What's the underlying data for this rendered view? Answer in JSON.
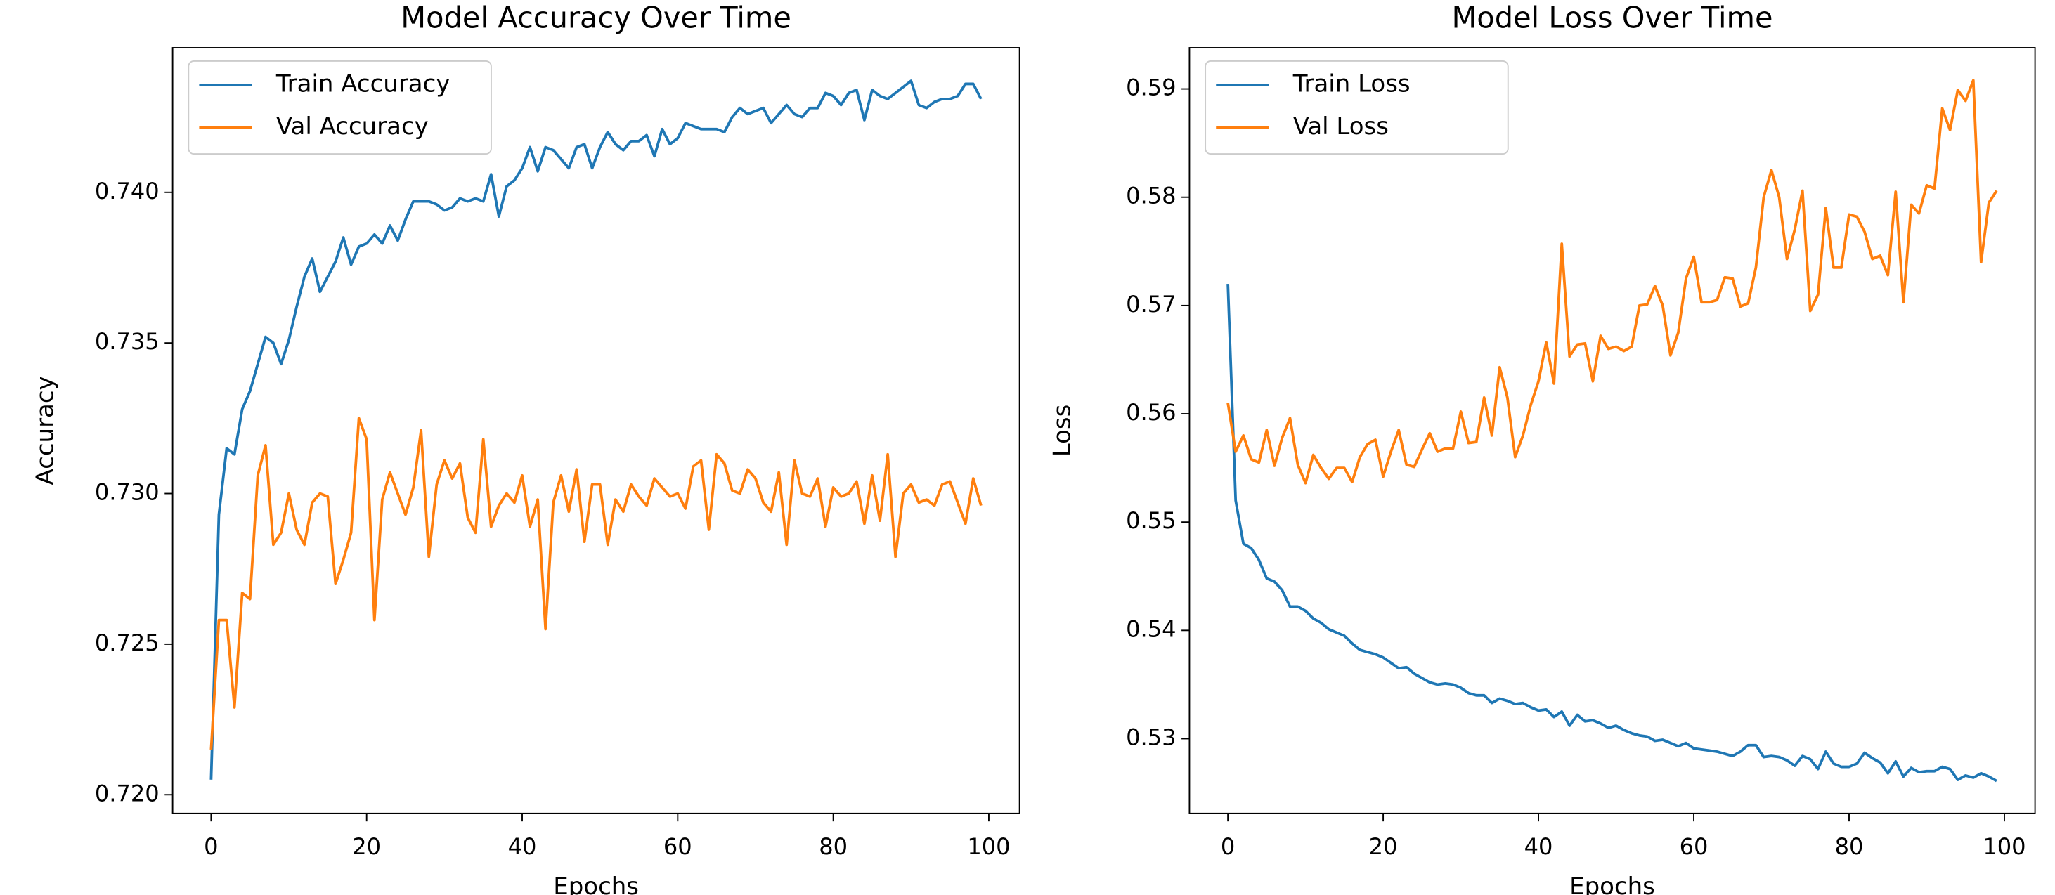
{
  "chart_data": [
    {
      "type": "line",
      "title": "Model Accuracy Over Time",
      "x_label": "Epochs",
      "y_label": "Accuracy",
      "x": [
        0,
        1,
        2,
        3,
        4,
        5,
        6,
        7,
        8,
        9,
        10,
        11,
        12,
        13,
        14,
        15,
        16,
        17,
        18,
        19,
        20,
        21,
        22,
        23,
        24,
        25,
        26,
        27,
        28,
        29,
        30,
        31,
        32,
        33,
        34,
        35,
        36,
        37,
        38,
        39,
        40,
        41,
        42,
        43,
        44,
        45,
        46,
        47,
        48,
        49,
        50,
        51,
        52,
        53,
        54,
        55,
        56,
        57,
        58,
        59,
        60,
        61,
        62,
        63,
        64,
        65,
        66,
        67,
        68,
        69,
        70,
        71,
        72,
        73,
        74,
        75,
        76,
        77,
        78,
        79,
        80,
        81,
        82,
        83,
        84,
        85,
        86,
        87,
        88,
        89,
        90,
        91,
        92,
        93,
        94,
        95,
        96,
        97,
        98,
        99
      ],
      "series": [
        {
          "name": "Train Accuracy",
          "color": "#1f77b4",
          "values": [
            0.7205,
            0.7293,
            0.7315,
            0.7313,
            0.7328,
            0.7334,
            0.7343,
            0.7352,
            0.735,
            0.7343,
            0.7351,
            0.7362,
            0.7372,
            0.7378,
            0.7367,
            0.7372,
            0.7377,
            0.7385,
            0.7376,
            0.7382,
            0.7383,
            0.7386,
            0.7383,
            0.7389,
            0.7384,
            0.7391,
            0.7397,
            0.7397,
            0.7397,
            0.7396,
            0.7394,
            0.7395,
            0.7398,
            0.7397,
            0.7398,
            0.7397,
            0.7406,
            0.7392,
            0.7402,
            0.7404,
            0.7408,
            0.7415,
            0.7407,
            0.7415,
            0.7414,
            0.7411,
            0.7408,
            0.7415,
            0.7416,
            0.7408,
            0.7415,
            0.742,
            0.7416,
            0.7414,
            0.7417,
            0.7417,
            0.7419,
            0.7412,
            0.7421,
            0.7416,
            0.7418,
            0.7423,
            0.7422,
            0.7421,
            0.7421,
            0.7421,
            0.742,
            0.7425,
            0.7428,
            0.7426,
            0.7427,
            0.7428,
            0.7423,
            0.7426,
            0.7429,
            0.7426,
            0.7425,
            0.7428,
            0.7428,
            0.7433,
            0.7432,
            0.7429,
            0.7433,
            0.7434,
            0.7424,
            0.7434,
            0.7432,
            0.7431,
            0.7433,
            0.7435,
            0.7437,
            0.7429,
            0.7428,
            0.743,
            0.7431,
            0.7431,
            0.7432,
            0.7436,
            0.7436,
            0.7431
          ]
        },
        {
          "name": "Val Accuracy",
          "color": "#ff7f0e",
          "values": [
            0.7215,
            0.7258,
            0.7258,
            0.7229,
            0.7267,
            0.7265,
            0.7306,
            0.7316,
            0.7283,
            0.7287,
            0.73,
            0.7288,
            0.7283,
            0.7297,
            0.73,
            0.7299,
            0.727,
            0.7278,
            0.7287,
            0.7325,
            0.7318,
            0.7258,
            0.7298,
            0.7307,
            0.73,
            0.7293,
            0.7302,
            0.7321,
            0.7279,
            0.7303,
            0.7311,
            0.7305,
            0.731,
            0.7292,
            0.7287,
            0.7318,
            0.7289,
            0.7296,
            0.73,
            0.7297,
            0.7306,
            0.7289,
            0.7298,
            0.7255,
            0.7297,
            0.7306,
            0.7294,
            0.7308,
            0.7284,
            0.7303,
            0.7303,
            0.7283,
            0.7298,
            0.7294,
            0.7303,
            0.7299,
            0.7296,
            0.7305,
            0.7302,
            0.7299,
            0.73,
            0.7295,
            0.7309,
            0.7311,
            0.7288,
            0.7313,
            0.731,
            0.7301,
            0.73,
            0.7308,
            0.7305,
            0.7297,
            0.7294,
            0.7307,
            0.7283,
            0.7311,
            0.73,
            0.7299,
            0.7305,
            0.7289,
            0.7302,
            0.7299,
            0.73,
            0.7304,
            0.729,
            0.7306,
            0.7291,
            0.7313,
            0.7279,
            0.73,
            0.7303,
            0.7297,
            0.7298,
            0.7296,
            0.7303,
            0.7304,
            0.7297,
            0.729,
            0.7305,
            0.7296
          ]
        }
      ],
      "xlim": [
        -4.95,
        103.95
      ],
      "xticks": [
        0,
        20,
        40,
        60,
        80,
        100
      ],
      "ylim": [
        0.71938,
        0.7448
      ],
      "yticks": [
        {
          "value": 0.72,
          "label": "0.720"
        },
        {
          "value": 0.725,
          "label": "0.725"
        },
        {
          "value": 0.73,
          "label": "0.730"
        },
        {
          "value": 0.735,
          "label": "0.735"
        },
        {
          "value": 0.74,
          "label": "0.740"
        }
      ],
      "grid": false,
      "legend": "upper left"
    },
    {
      "type": "line",
      "title": "Model Loss Over Time",
      "x_label": "Epochs",
      "y_label": "Loss",
      "x": [
        0,
        1,
        2,
        3,
        4,
        5,
        6,
        7,
        8,
        9,
        10,
        11,
        12,
        13,
        14,
        15,
        16,
        17,
        18,
        19,
        20,
        21,
        22,
        23,
        24,
        25,
        26,
        27,
        28,
        29,
        30,
        31,
        32,
        33,
        34,
        35,
        36,
        37,
        38,
        39,
        40,
        41,
        42,
        43,
        44,
        45,
        46,
        47,
        48,
        49,
        50,
        51,
        52,
        53,
        54,
        55,
        56,
        57,
        58,
        59,
        60,
        61,
        62,
        63,
        64,
        65,
        66,
        67,
        68,
        69,
        70,
        71,
        72,
        73,
        74,
        75,
        76,
        77,
        78,
        79,
        80,
        81,
        82,
        83,
        84,
        85,
        86,
        87,
        88,
        89,
        90,
        91,
        92,
        93,
        94,
        95,
        96,
        97,
        98,
        99
      ],
      "series": [
        {
          "name": "Train Loss",
          "color": "#1f77b4",
          "values": [
            0.572,
            0.552,
            0.548,
            0.5476,
            0.5465,
            0.5448,
            0.5445,
            0.5437,
            0.5422,
            0.5422,
            0.5418,
            0.5411,
            0.5407,
            0.5401,
            0.5398,
            0.5395,
            0.5388,
            0.5382,
            0.538,
            0.5378,
            0.5375,
            0.537,
            0.5365,
            0.5366,
            0.536,
            0.5356,
            0.5352,
            0.535,
            0.5351,
            0.535,
            0.5347,
            0.5342,
            0.534,
            0.534,
            0.5333,
            0.5337,
            0.5335,
            0.5332,
            0.5333,
            0.5329,
            0.5326,
            0.5327,
            0.532,
            0.5325,
            0.5312,
            0.5322,
            0.5316,
            0.5317,
            0.5314,
            0.531,
            0.5312,
            0.5308,
            0.5305,
            0.5303,
            0.5302,
            0.5298,
            0.5299,
            0.5296,
            0.5293,
            0.5296,
            0.5291,
            0.529,
            0.5289,
            0.5288,
            0.5286,
            0.5284,
            0.5288,
            0.5294,
            0.5294,
            0.5283,
            0.5284,
            0.5283,
            0.528,
            0.5275,
            0.5284,
            0.5281,
            0.5272,
            0.5288,
            0.5277,
            0.5274,
            0.5274,
            0.5277,
            0.5287,
            0.5282,
            0.5278,
            0.5268,
            0.5279,
            0.5265,
            0.5273,
            0.5269,
            0.527,
            0.527,
            0.5274,
            0.5272,
            0.5262,
            0.5266,
            0.5264,
            0.5268,
            0.5265,
            0.5261
          ]
        },
        {
          "name": "Val Loss",
          "color": "#ff7f0e",
          "values": [
            0.561,
            0.5565,
            0.558,
            0.5558,
            0.5555,
            0.5585,
            0.5552,
            0.5578,
            0.5596,
            0.5553,
            0.5536,
            0.5562,
            0.555,
            0.554,
            0.555,
            0.555,
            0.5537,
            0.556,
            0.5572,
            0.5576,
            0.5542,
            0.5565,
            0.5585,
            0.5553,
            0.5551,
            0.5567,
            0.5582,
            0.5565,
            0.5568,
            0.5568,
            0.5602,
            0.5573,
            0.5574,
            0.5615,
            0.558,
            0.5643,
            0.5615,
            0.556,
            0.558,
            0.5608,
            0.563,
            0.5666,
            0.5628,
            0.5757,
            0.5653,
            0.5664,
            0.5665,
            0.563,
            0.5672,
            0.566,
            0.5662,
            0.5658,
            0.5662,
            0.57,
            0.5701,
            0.5718,
            0.57,
            0.5654,
            0.5675,
            0.5725,
            0.5745,
            0.5703,
            0.5703,
            0.5705,
            0.5726,
            0.5725,
            0.5699,
            0.5702,
            0.5735,
            0.58,
            0.5825,
            0.58,
            0.5743,
            0.577,
            0.5806,
            0.5695,
            0.571,
            0.579,
            0.5735,
            0.5735,
            0.5784,
            0.5782,
            0.5768,
            0.5743,
            0.5746,
            0.5728,
            0.5805,
            0.5703,
            0.5793,
            0.5785,
            0.5811,
            0.5808,
            0.5882,
            0.5862,
            0.5899,
            0.5889,
            0.5908,
            0.574,
            0.5795,
            0.5806
          ]
        }
      ],
      "xlim": [
        -4.95,
        103.95
      ],
      "xticks": [
        0,
        20,
        40,
        60,
        80,
        100
      ],
      "ylim": [
        0.5231,
        0.5938
      ],
      "yticks": [
        0.53,
        0.54,
        0.55,
        0.56,
        0.57,
        0.58,
        0.59
      ],
      "grid": false,
      "legend": "upper left"
    }
  ]
}
